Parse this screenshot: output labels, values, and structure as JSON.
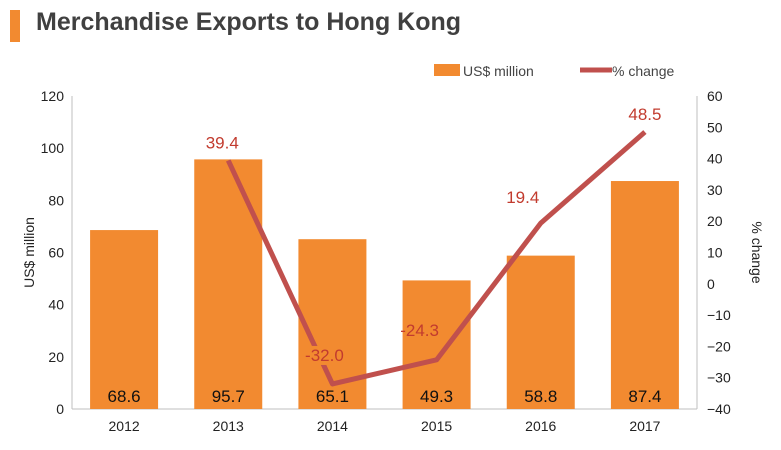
{
  "title": "Merchandise Exports to Hong Kong",
  "colors": {
    "accent": "#f28a30",
    "bar": "#f28a30",
    "line": "#c0504d",
    "label_red": "#c23b2e"
  },
  "chart_data": {
    "type": "bar",
    "categories": [
      "2012",
      "2013",
      "2014",
      "2015",
      "2016",
      "2017"
    ],
    "series": [
      {
        "name": "US$ million",
        "type": "bar",
        "axis": "left",
        "values": [
          68.6,
          95.7,
          65.1,
          49.3,
          58.8,
          87.4
        ]
      },
      {
        "name": "% change",
        "type": "line",
        "axis": "right",
        "values": [
          null,
          39.4,
          -32.0,
          -24.3,
          19.4,
          48.5
        ]
      }
    ],
    "bar_labels": [
      "68.6",
      "95.7",
      "65.1",
      "49.3",
      "58.8",
      "87.4"
    ],
    "line_labels": [
      "",
      "39.4",
      "-32.0",
      "-24.3",
      "19.4",
      "48.5"
    ],
    "ylabel": "US$ million",
    "ylabel_right": "% change",
    "ylim": [
      0,
      120
    ],
    "ylim_right": [
      -40,
      60
    ],
    "yticks": [
      "0",
      "20",
      "40",
      "60",
      "80",
      "100",
      "120"
    ],
    "yticks_right": [
      "-40",
      "-30",
      "-20",
      "-10",
      "0",
      "10",
      "20",
      "30",
      "40",
      "50",
      "60"
    ],
    "legend": [
      "US$ million",
      "% change"
    ],
    "legend_position": "top-right",
    "grid": false
  }
}
